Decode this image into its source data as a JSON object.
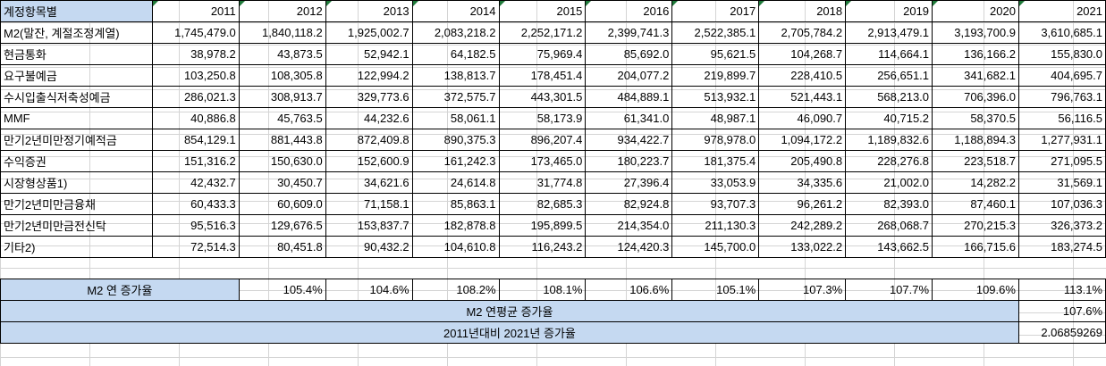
{
  "header": {
    "label": "계정항목별",
    "years": [
      "2011",
      "2012",
      "2013",
      "2014",
      "2015",
      "2016",
      "2017",
      "2018",
      "2019",
      "2020",
      "2021"
    ]
  },
  "rows": [
    {
      "label": "M2(말잔, 계절조정계열)",
      "values": [
        "1,745,479.0",
        "1,840,118.2",
        "1,925,002.7",
        "2,083,218.2",
        "2,252,171.2",
        "2,399,741.3",
        "2,522,385.1",
        "2,705,784.2",
        "2,913,479.1",
        "3,193,700.9",
        "3,610,685.1"
      ]
    },
    {
      "label": "현금통화",
      "values": [
        "38,978.2",
        "43,873.5",
        "52,942.1",
        "64,182.5",
        "75,969.4",
        "85,692.0",
        "95,621.5",
        "104,268.7",
        "114,664.1",
        "136,166.2",
        "155,830.0"
      ]
    },
    {
      "label": "요구불예금",
      "values": [
        "103,250.8",
        "108,305.8",
        "122,994.2",
        "138,813.7",
        "178,451.4",
        "204,077.2",
        "219,899.7",
        "228,410.5",
        "256,651.1",
        "341,682.1",
        "404,695.7"
      ]
    },
    {
      "label": "수시입출식저축성예금",
      "values": [
        "286,021.3",
        "308,913.7",
        "329,773.6",
        "372,575.7",
        "443,301.5",
        "484,889.1",
        "513,932.1",
        "521,443.1",
        "568,213.0",
        "706,396.0",
        "796,763.1"
      ]
    },
    {
      "label": "MMF",
      "values": [
        "40,886.8",
        "45,763.5",
        "44,232.6",
        "58,061.1",
        "58,173.9",
        "61,341.0",
        "48,987.1",
        "46,090.7",
        "40,715.2",
        "58,370.5",
        "56,116.5"
      ]
    },
    {
      "label": "만기2년미만정기예적금",
      "values": [
        "854,129.1",
        "881,443.8",
        "872,409.8",
        "890,375.3",
        "896,207.4",
        "934,422.7",
        "978,978.0",
        "1,094,172.2",
        "1,189,832.6",
        "1,188,894.3",
        "1,277,931.1"
      ]
    },
    {
      "label": "수익증권",
      "values": [
        "151,316.2",
        "150,630.0",
        "152,600.9",
        "161,242.3",
        "173,465.0",
        "180,223.7",
        "181,375.4",
        "205,490.8",
        "228,276.8",
        "223,518.7",
        "271,095.5"
      ]
    },
    {
      "label": "시장형상품1)",
      "values": [
        "42,432.7",
        "30,450.7",
        "34,621.6",
        "24,614.8",
        "31,774.8",
        "27,396.4",
        "33,053.9",
        "34,335.6",
        "21,002.0",
        "14,282.2",
        "31,569.1"
      ]
    },
    {
      "label": "만기2년미만금융채",
      "values": [
        "60,433.3",
        "60,609.0",
        "71,158.1",
        "85,863.1",
        "82,685.3",
        "82,924.8",
        "93,707.3",
        "96,261.2",
        "82,393.0",
        "87,460.1",
        "107,036.3"
      ]
    },
    {
      "label": "만기2년미만금전신탁",
      "values": [
        "95,516.3",
        "129,676.5",
        "153,837.7",
        "182,878.8",
        "195,899.5",
        "214,354.0",
        "211,130.3",
        "242,289.2",
        "268,068.7",
        "270,215.3",
        "326,373.2"
      ]
    },
    {
      "label": "기타2)",
      "values": [
        "72,514.3",
        "80,451.8",
        "90,432.2",
        "104,610.8",
        "116,243.2",
        "124,420.3",
        "145,700.0",
        "133,022.2",
        "143,662.5",
        "166,715.6",
        "183,274.5"
      ]
    }
  ],
  "growth": {
    "label": "M2 연 증가율",
    "values": [
      "105.4%",
      "104.6%",
      "108.2%",
      "108.1%",
      "106.6%",
      "105.1%",
      "107.3%",
      "107.7%",
      "109.6%",
      "113.1%"
    ]
  },
  "avg": {
    "label": "M2 연평균 증가율",
    "value": "107.6%"
  },
  "ratio": {
    "label": "2011년대비 2021년 증가율",
    "value": "2.06859269"
  },
  "colors": {
    "header_blue": "#c5d9f1",
    "corner_mark": "#1f7a3a"
  }
}
